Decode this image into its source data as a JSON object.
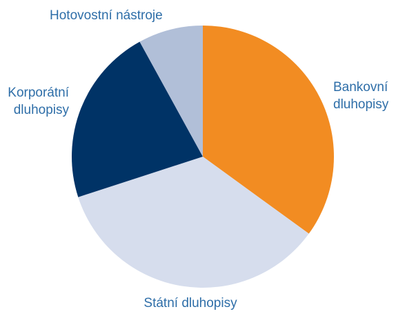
{
  "chart_data": {
    "type": "pie",
    "categories": [
      "Bankovní dluhopisy",
      "Státní dluhopisy",
      "Korporátní dluhopisy",
      "Hotovostní nástroje"
    ],
    "values": [
      35.0,
      35.0,
      22.0,
      8.0
    ],
    "unit": "%",
    "colors": [
      "#f28c22",
      "#d6dded",
      "#003366",
      "#b1bfd8"
    ],
    "label_lines": [
      [
        "Bankovní",
        "dluhopisy"
      ],
      [
        "Státní dluhopisy"
      ],
      [
        "Korporátní",
        "dluhopisy"
      ],
      [
        "Hotovostní nástroje"
      ]
    ],
    "start_angle_deg": 0,
    "direction": "clockwise",
    "legend": "none",
    "title": ""
  }
}
